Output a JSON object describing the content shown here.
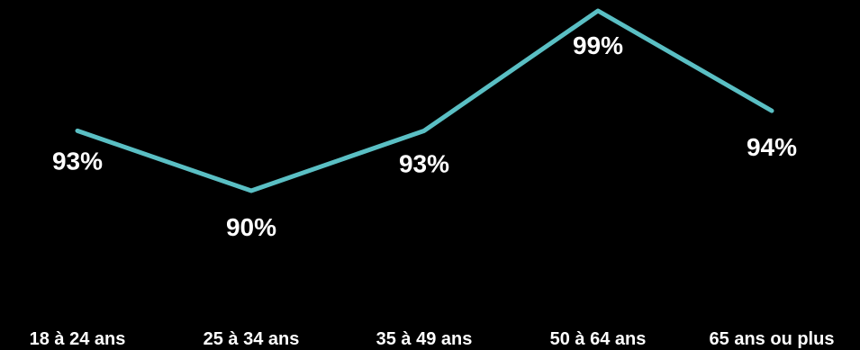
{
  "chart_data": {
    "type": "line",
    "categories": [
      "18 à 24 ans",
      "25 à 34 ans",
      "35 à 49 ans",
      "50 à 64 ans",
      "65 ans ou plus"
    ],
    "series": [
      {
        "values": [
          93,
          90,
          93,
          99,
          94
        ],
        "labels": [
          "93%",
          "90%",
          "93%",
          "99%",
          "94%"
        ],
        "color": "#5ABFC4"
      }
    ],
    "title": "",
    "xlabel": "",
    "ylabel": "",
    "grid": false,
    "legend": "none"
  },
  "colors": {
    "background": "#000000",
    "line": "#5ABFC4",
    "text": "#FFFFFF"
  }
}
